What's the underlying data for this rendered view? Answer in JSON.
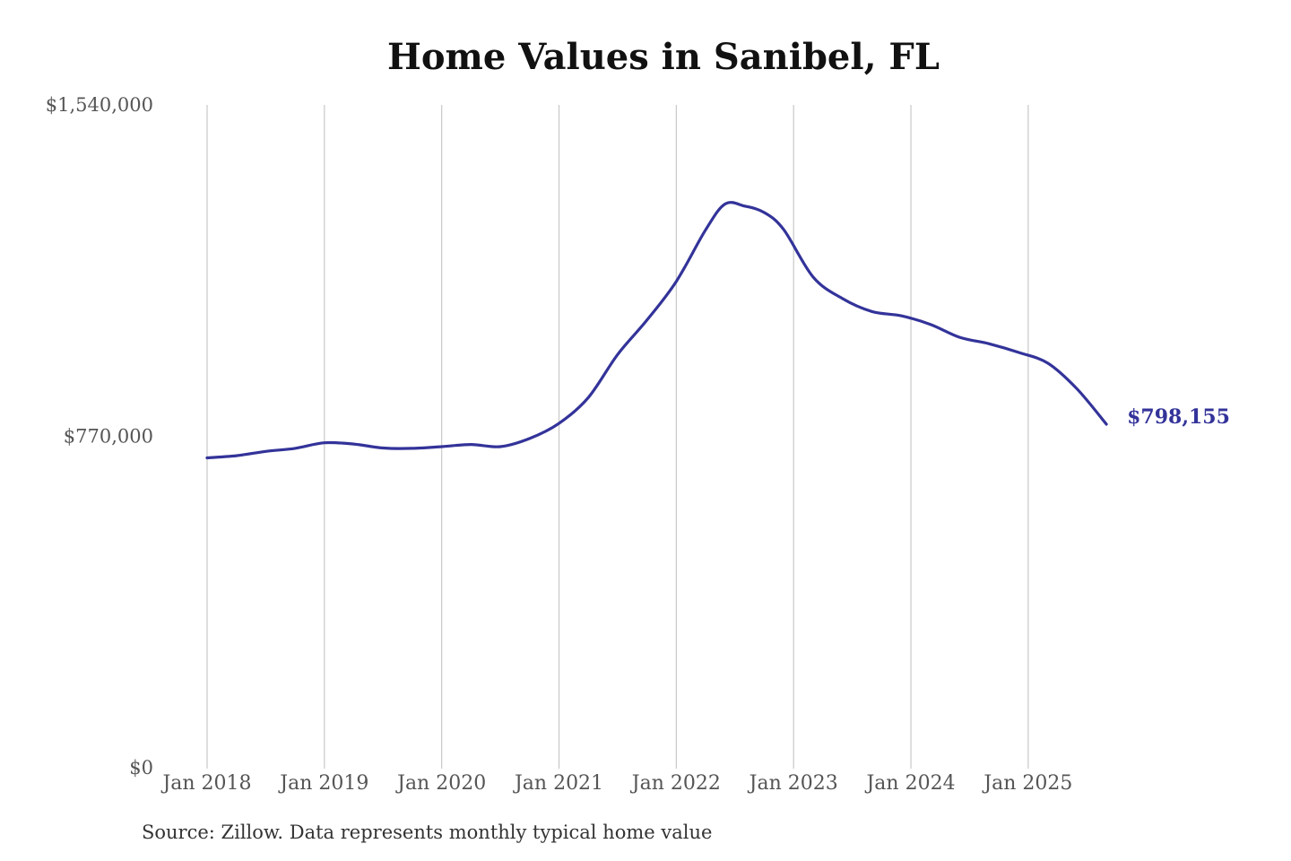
{
  "title": "Home Values in Sanibel, FL",
  "source": "Source: Zillow. Data represents monthly typical home value",
  "colors": {
    "line": "#33339a",
    "gridline": "#c8c8c8",
    "axis_text": "#555555",
    "title": "#111111"
  },
  "chart_data": {
    "type": "line",
    "title": "Home Values in Sanibel, FL",
    "xlabel": "",
    "ylabel": "",
    "grid": "vertical",
    "x_ticks": [
      "Jan 2018",
      "Jan 2019",
      "Jan 2020",
      "Jan 2021",
      "Jan 2022",
      "Jan 2023",
      "Jan 2024",
      "Jan 2025"
    ],
    "y_ticks": [
      {
        "value": 0,
        "label": "$0"
      },
      {
        "value": 770000,
        "label": "$770,000"
      },
      {
        "value": 1540000,
        "label": "$1,540,000"
      }
    ],
    "ylim": [
      0,
      1540000
    ],
    "xlim": [
      "2018-01",
      "2025-10"
    ],
    "series": [
      {
        "end_label": "$798,155",
        "points": [
          {
            "date": "2018-01",
            "value": 720000
          },
          {
            "date": "2018-04",
            "value": 725000
          },
          {
            "date": "2018-07",
            "value": 735000
          },
          {
            "date": "2018-10",
            "value": 742000
          },
          {
            "date": "2019-01",
            "value": 755000
          },
          {
            "date": "2019-04",
            "value": 752000
          },
          {
            "date": "2019-07",
            "value": 743000
          },
          {
            "date": "2019-10",
            "value": 742000
          },
          {
            "date": "2020-01",
            "value": 746000
          },
          {
            "date": "2020-04",
            "value": 751000
          },
          {
            "date": "2020-07",
            "value": 746000
          },
          {
            "date": "2020-10",
            "value": 765000
          },
          {
            "date": "2021-01",
            "value": 800000
          },
          {
            "date": "2021-04",
            "value": 860000
          },
          {
            "date": "2021-07",
            "value": 960000
          },
          {
            "date": "2021-10",
            "value": 1040000
          },
          {
            "date": "2022-01",
            "value": 1130000
          },
          {
            "date": "2022-04",
            "value": 1250000
          },
          {
            "date": "2022-06",
            "value": 1310000
          },
          {
            "date": "2022-08",
            "value": 1305000
          },
          {
            "date": "2022-10",
            "value": 1290000
          },
          {
            "date": "2022-12",
            "value": 1250000
          },
          {
            "date": "2023-03",
            "value": 1140000
          },
          {
            "date": "2023-06",
            "value": 1090000
          },
          {
            "date": "2023-09",
            "value": 1060000
          },
          {
            "date": "2023-12",
            "value": 1050000
          },
          {
            "date": "2024-03",
            "value": 1030000
          },
          {
            "date": "2024-06",
            "value": 1000000
          },
          {
            "date": "2024-09",
            "value": 985000
          },
          {
            "date": "2024-12",
            "value": 965000
          },
          {
            "date": "2025-03",
            "value": 940000
          },
          {
            "date": "2025-06",
            "value": 880000
          },
          {
            "date": "2025-09",
            "value": 798155
          }
        ]
      }
    ]
  }
}
